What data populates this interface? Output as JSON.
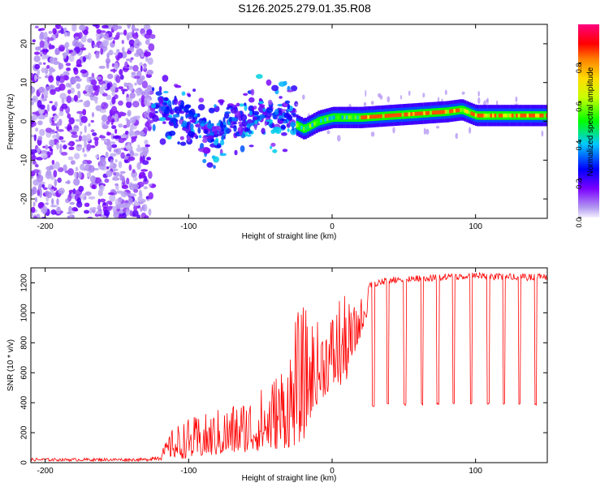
{
  "title": "S126.2025.279.01.35.R08",
  "chart_data": [
    {
      "type": "heatmap",
      "title": "S126.2025.279.01.35.R08",
      "xlabel": "Height of straight line (km)",
      "ylabel": "Frequency (Hz)",
      "xlim": [
        -210,
        150
      ],
      "ylim": [
        -25,
        25
      ],
      "xticks": [
        -200,
        -100,
        0,
        100
      ],
      "yticks": [
        -20,
        -10,
        0,
        10,
        20
      ],
      "colorbar": {
        "label": "Normalized spectral amplitude",
        "range": [
          0,
          1
        ],
        "ticks": [
          "0.0",
          "0.2",
          "0.4",
          "0.6",
          "0.8"
        ],
        "tick_values": [
          0.0,
          0.2,
          0.4,
          0.6,
          0.8
        ]
      },
      "regions": [
        {
          "name": "noise",
          "x_range": [
            -210,
            -125
          ],
          "freq_range": [
            -25,
            25
          ],
          "amplitude": 0.05
        },
        {
          "name": "scattered",
          "x_range": [
            -125,
            -25
          ],
          "freq_range": [
            -12,
            12
          ],
          "amplitude": 0.25
        },
        {
          "name": "carrier",
          "x_range": [
            -25,
            150
          ],
          "freq_center": 1.5,
          "amplitude": 0.9
        }
      ],
      "carrier_track": {
        "x": [
          -125,
          -110,
          -100,
          -90,
          -80,
          -70,
          -60,
          -50,
          -40,
          -30,
          -25,
          -20,
          -10,
          0,
          10,
          20,
          40,
          60,
          80,
          90,
          100,
          120,
          150
        ],
        "freq": [
          4,
          2,
          0,
          -2,
          -4,
          2,
          -2,
          3,
          0,
          2,
          -1,
          -2,
          0,
          1,
          1,
          1,
          1.5,
          2,
          2.5,
          3,
          1.5,
          1.5,
          1.5
        ]
      }
    },
    {
      "type": "line",
      "xlabel": "Height of straight line (km)",
      "ylabel": "SNR (10 * v/v)",
      "xlim": [
        -210,
        150
      ],
      "ylim": [
        0,
        1300
      ],
      "xticks": [
        -200,
        -100,
        0,
        100
      ],
      "yticks": [
        0,
        200,
        400,
        600,
        800,
        1000,
        1200
      ],
      "series": [
        {
          "name": "SNR",
          "color": "#ff0000",
          "envelope": {
            "x": [
              -210,
              -130,
              -120,
              -110,
              -100,
              -90,
              -80,
              -70,
              -60,
              -50,
              -40,
              -30,
              -25,
              -20,
              -15,
              -10,
              -5,
              0,
              5,
              10,
              15,
              20,
              25,
              30,
              40,
              60,
              80,
              100,
              120,
              150
            ],
            "low": [
              10,
              10,
              15,
              20,
              30,
              40,
              50,
              60,
              70,
              80,
              90,
              100,
              120,
              150,
              300,
              400,
              450,
              500,
              500,
              550,
              700,
              850,
              1000,
              1150,
              1200,
              1210,
              1220,
              1220,
              1225,
              1230
            ],
            "high": [
              30,
              30,
              60,
              250,
              300,
              320,
              360,
              400,
              450,
              500,
              600,
              800,
              1000,
              1050,
              1000,
              950,
              1000,
              1020,
              1150,
              1100,
              1050,
              1100,
              1200,
              1220,
              1240,
              1250,
              1260,
              1270,
              1260,
              1260
            ]
          },
          "dropouts": {
            "x": [
              28,
              38,
              50,
              62,
              73,
              84,
              96,
              108,
              119,
              130,
              141
            ],
            "depth": [
              370,
              380,
              380,
              385,
              385,
              385,
              385,
              385,
              385,
              385,
              385
            ]
          }
        }
      ]
    }
  ]
}
